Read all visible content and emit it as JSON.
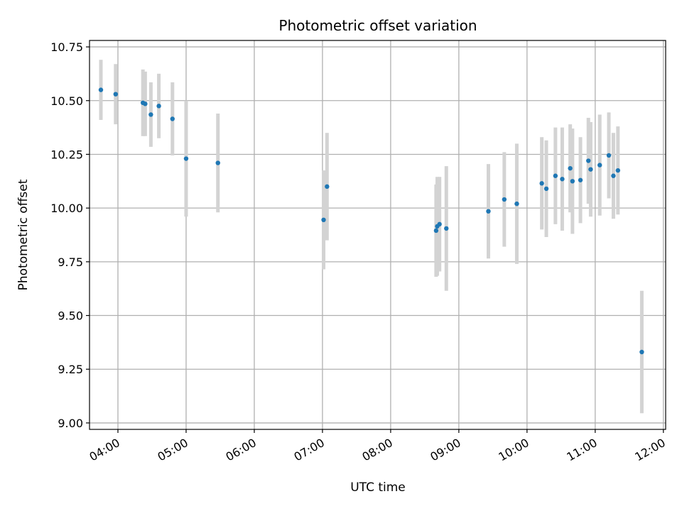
{
  "chart_data": {
    "type": "scatter",
    "title": "Photometric offset variation",
    "xlabel": "UTC time",
    "ylabel": "Photometric offset",
    "grid": true,
    "xlim": [
      "03:35",
      "12:02"
    ],
    "ylim": [
      8.97,
      10.78
    ],
    "x_ticks": [
      "04:00",
      "05:00",
      "06:00",
      "07:00",
      "08:00",
      "09:00",
      "10:00",
      "11:00",
      "12:00"
    ],
    "y_ticks": [
      "9.00",
      "9.25",
      "9.50",
      "9.75",
      "10.00",
      "10.25",
      "10.50",
      "10.75"
    ],
    "colors": {
      "point": "#1f77b4",
      "errorbar": "#d3d3d3",
      "grid": "#b0b0b0"
    },
    "points": [
      {
        "x": "03:45",
        "y": 10.55,
        "err": 0.14
      },
      {
        "x": "03:58",
        "y": 10.53,
        "err": 0.14
      },
      {
        "x": "04:22",
        "y": 10.49,
        "err": 0.155
      },
      {
        "x": "04:24",
        "y": 10.485,
        "err": 0.15
      },
      {
        "x": "04:29",
        "y": 10.435,
        "err": 0.15
      },
      {
        "x": "04:36",
        "y": 10.475,
        "err": 0.15
      },
      {
        "x": "04:48",
        "y": 10.415,
        "err": 0.17
      },
      {
        "x": "05:00",
        "y": 10.23,
        "err": 0.27
      },
      {
        "x": "05:28",
        "y": 10.21,
        "err": 0.23
      },
      {
        "x": "07:01",
        "y": 9.945,
        "err": 0.23
      },
      {
        "x": "07:04",
        "y": 10.1,
        "err": 0.25
      },
      {
        "x": "08:40",
        "y": 9.895,
        "err": 0.215
      },
      {
        "x": "08:41",
        "y": 9.915,
        "err": 0.23
      },
      {
        "x": "08:43",
        "y": 9.925,
        "err": 0.22
      },
      {
        "x": "08:49",
        "y": 9.905,
        "err": 0.29
      },
      {
        "x": "09:26",
        "y": 9.985,
        "err": 0.22
      },
      {
        "x": "09:40",
        "y": 10.04,
        "err": 0.22
      },
      {
        "x": "09:51",
        "y": 10.02,
        "err": 0.28
      },
      {
        "x": "10:13",
        "y": 10.115,
        "err": 0.215
      },
      {
        "x": "10:17",
        "y": 10.09,
        "err": 0.225
      },
      {
        "x": "10:25",
        "y": 10.15,
        "err": 0.225
      },
      {
        "x": "10:31",
        "y": 10.135,
        "err": 0.24
      },
      {
        "x": "10:38",
        "y": 10.185,
        "err": 0.205
      },
      {
        "x": "10:40",
        "y": 10.125,
        "err": 0.245
      },
      {
        "x": "10:47",
        "y": 10.13,
        "err": 0.2
      },
      {
        "x": "10:54",
        "y": 10.22,
        "err": 0.2
      },
      {
        "x": "10:56",
        "y": 10.18,
        "err": 0.22
      },
      {
        "x": "11:04",
        "y": 10.2,
        "err": 0.235
      },
      {
        "x": "11:12",
        "y": 10.245,
        "err": 0.2
      },
      {
        "x": "11:16",
        "y": 10.15,
        "err": 0.2
      },
      {
        "x": "11:20",
        "y": 10.175,
        "err": 0.205
      },
      {
        "x": "11:41",
        "y": 9.33,
        "err": 0.285
      }
    ]
  }
}
